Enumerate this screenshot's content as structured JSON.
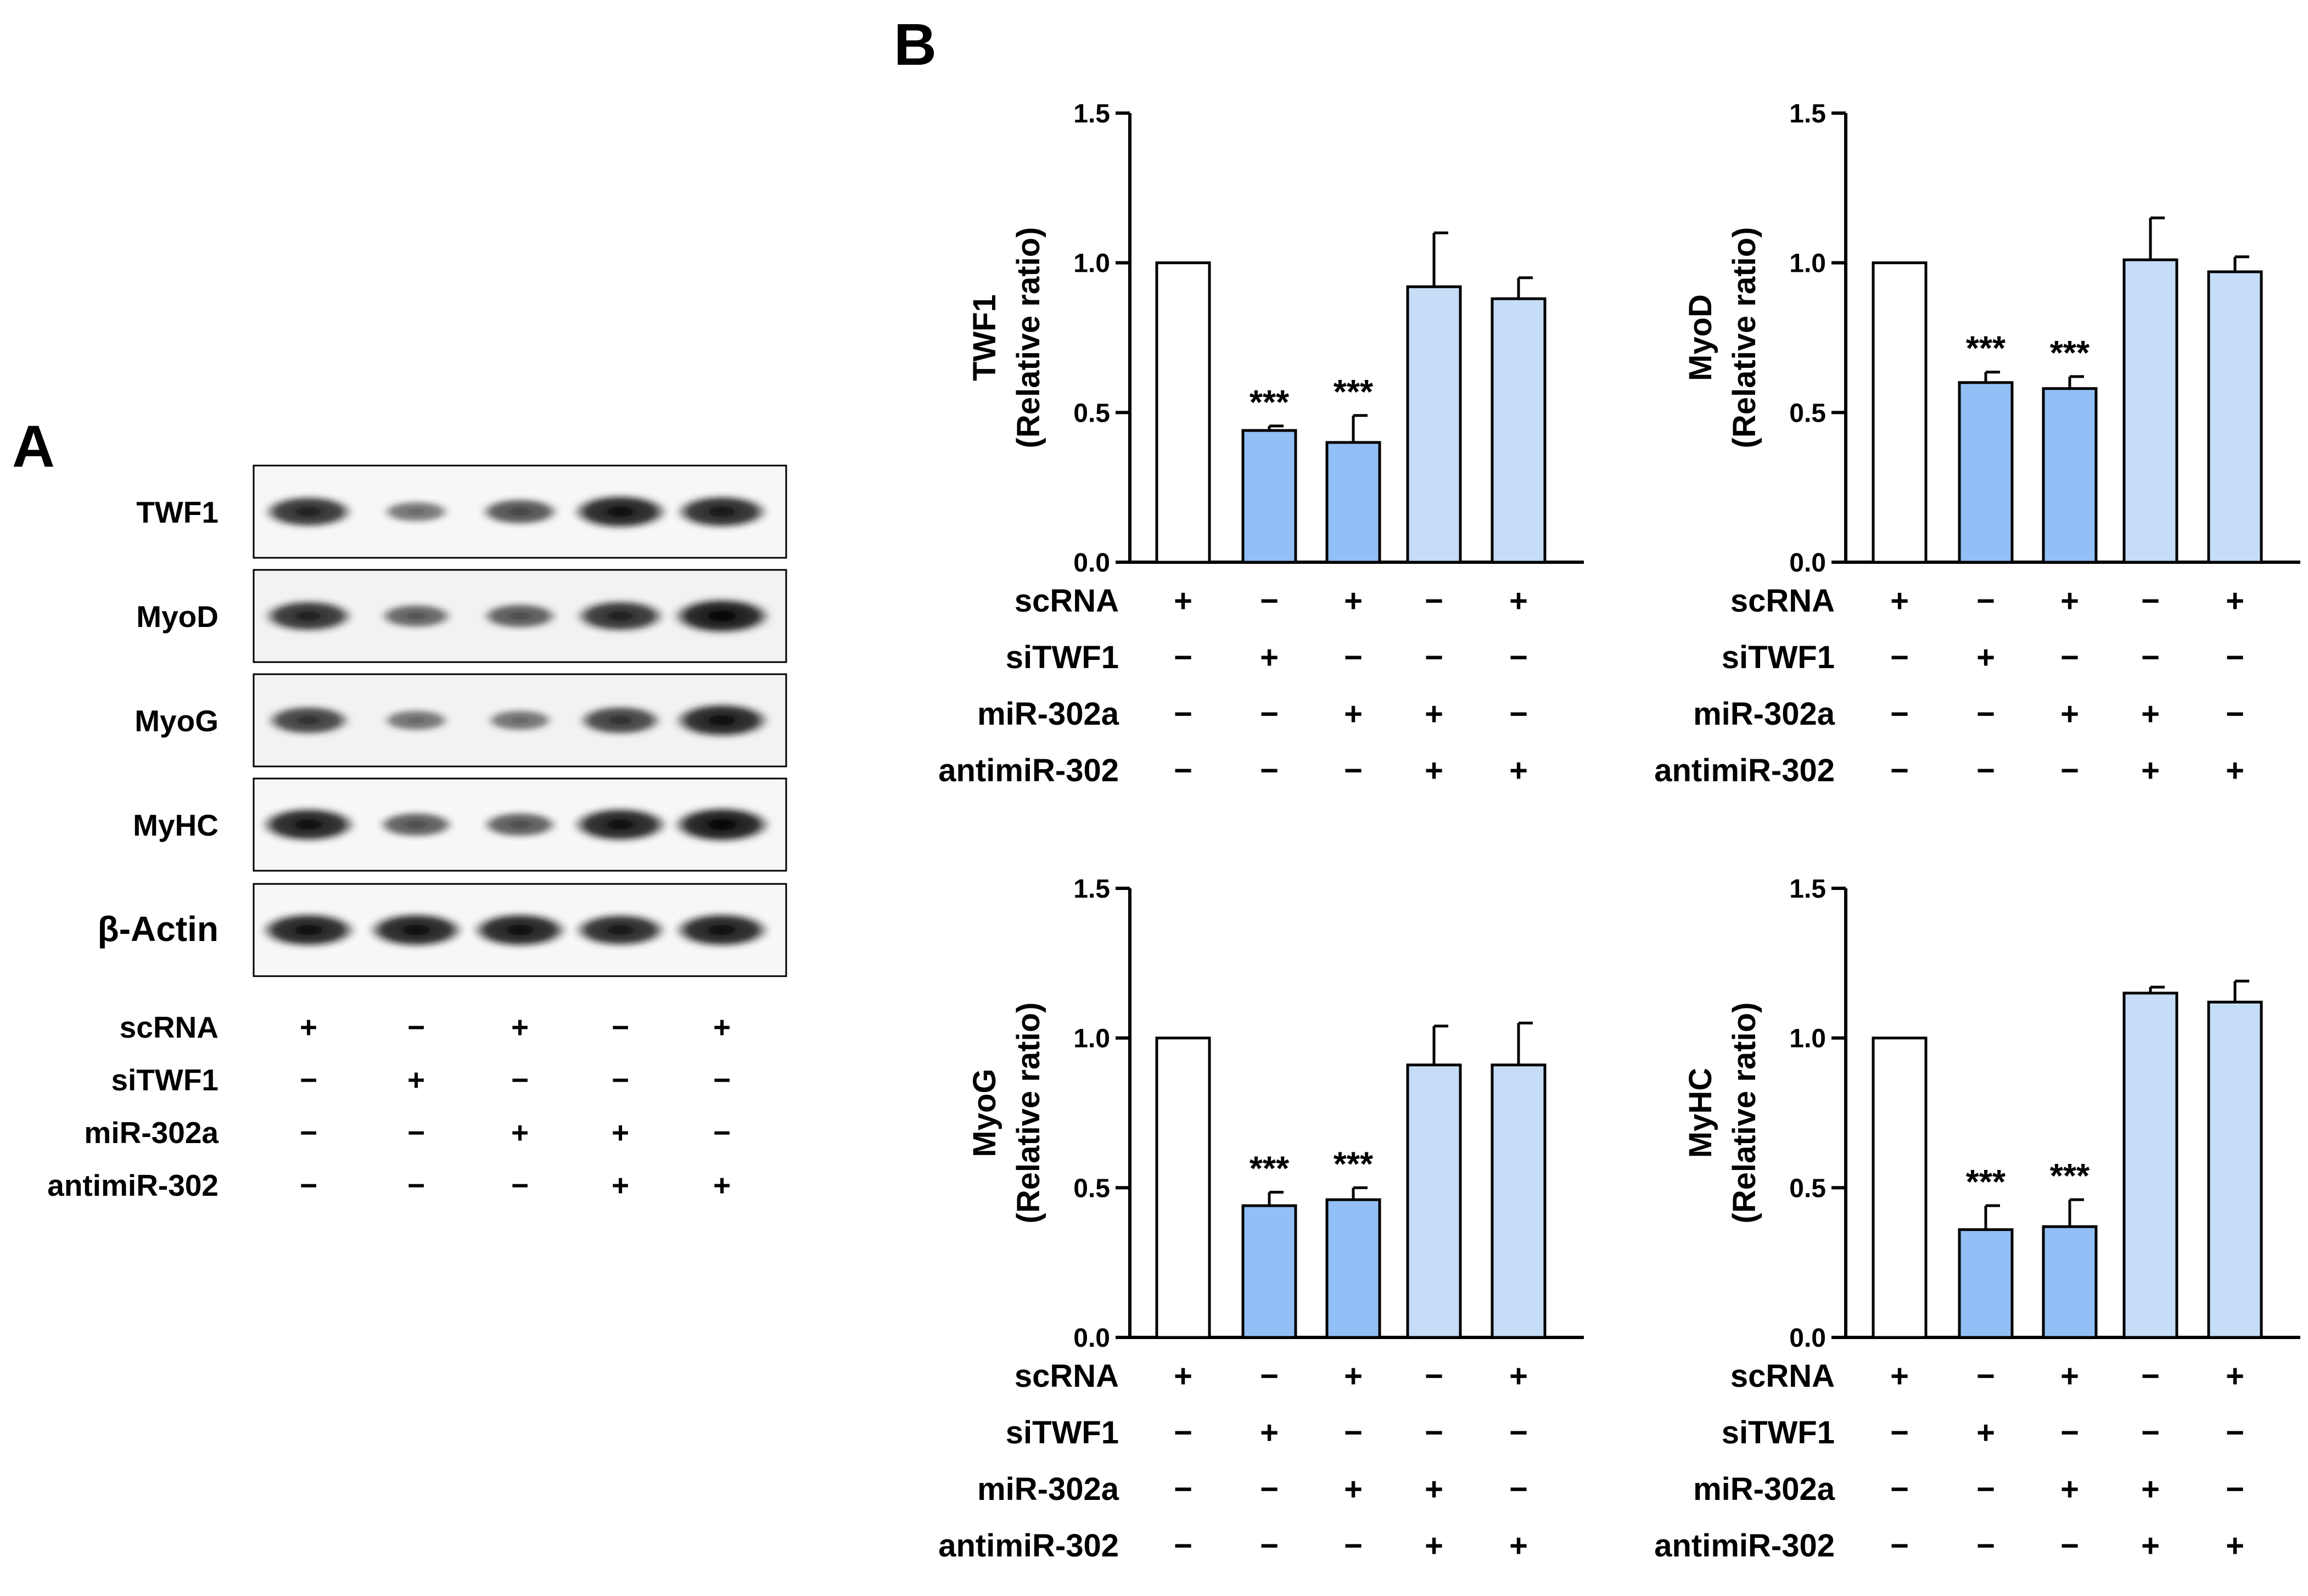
{
  "panel_labels": {
    "a": "A",
    "b": "B"
  },
  "western_blot": {
    "rows": [
      "TWF1",
      "MyoD",
      "MyoG",
      "MyHC",
      "β-Actin"
    ],
    "band_intensity": [
      [
        0.85,
        0.45,
        0.65,
        0.95,
        0.9
      ],
      [
        0.85,
        0.55,
        0.6,
        0.85,
        1.0
      ],
      [
        0.75,
        0.45,
        0.45,
        0.75,
        0.95
      ],
      [
        0.95,
        0.6,
        0.6,
        0.95,
        1.0
      ],
      [
        0.95,
        0.95,
        0.95,
        0.9,
        0.95
      ]
    ]
  },
  "conditions": {
    "labels": [
      "scRNA",
      "siTWF1",
      "miR-302a",
      "antimiR-302"
    ],
    "matrix": [
      [
        "+",
        "−",
        "+",
        "−",
        "+"
      ],
      [
        "−",
        "+",
        "−",
        "−",
        "−"
      ],
      [
        "−",
        "−",
        "+",
        "+",
        "−"
      ],
      [
        "−",
        "−",
        "−",
        "+",
        "+"
      ]
    ]
  },
  "colors": {
    "control": "#ffffff",
    "knockdown": "#92bff5",
    "rescue": "#c6ddf7",
    "stroke": "#000000"
  },
  "chart_data": [
    {
      "type": "bar",
      "ylabel": "TWF1",
      "ylabel2": "(Relative ratio)",
      "ylim": [
        0,
        1.5
      ],
      "yticks": [
        "0.0",
        "0.5",
        "1.0",
        "1.5"
      ],
      "values": [
        1.0,
        0.44,
        0.4,
        0.92,
        0.88
      ],
      "errors": [
        0,
        0.015,
        0.09,
        0.18,
        0.07
      ],
      "significance": [
        "",
        "***",
        "***",
        "",
        ""
      ]
    },
    {
      "type": "bar",
      "ylabel": "MyoD",
      "ylabel2": "(Relative ratio)",
      "ylim": [
        0,
        1.5
      ],
      "yticks": [
        "0.0",
        "0.5",
        "1.0",
        "1.5"
      ],
      "values": [
        1.0,
        0.6,
        0.58,
        1.01,
        0.97
      ],
      "errors": [
        0,
        0.035,
        0.04,
        0.14,
        0.05
      ],
      "significance": [
        "",
        "***",
        "***",
        "",
        ""
      ]
    },
    {
      "type": "bar",
      "ylabel": "MyoG",
      "ylabel2": "(Relative ratio)",
      "ylim": [
        0,
        1.5
      ],
      "yticks": [
        "0.0",
        "0.5",
        "1.0",
        "1.5"
      ],
      "values": [
        1.0,
        0.44,
        0.46,
        0.91,
        0.91
      ],
      "errors": [
        0,
        0.045,
        0.04,
        0.13,
        0.14
      ],
      "significance": [
        "",
        "***",
        "***",
        "",
        ""
      ]
    },
    {
      "type": "bar",
      "ylabel": "MyHC",
      "ylabel2": "(Relative ratio)",
      "ylim": [
        0,
        1.5
      ],
      "yticks": [
        "0.0",
        "0.5",
        "1.0",
        "1.5"
      ],
      "values": [
        1.0,
        0.36,
        0.37,
        1.15,
        1.12
      ],
      "errors": [
        0,
        0.08,
        0.09,
        0.02,
        0.07
      ],
      "significance": [
        "",
        "***",
        "***",
        "",
        ""
      ]
    }
  ]
}
